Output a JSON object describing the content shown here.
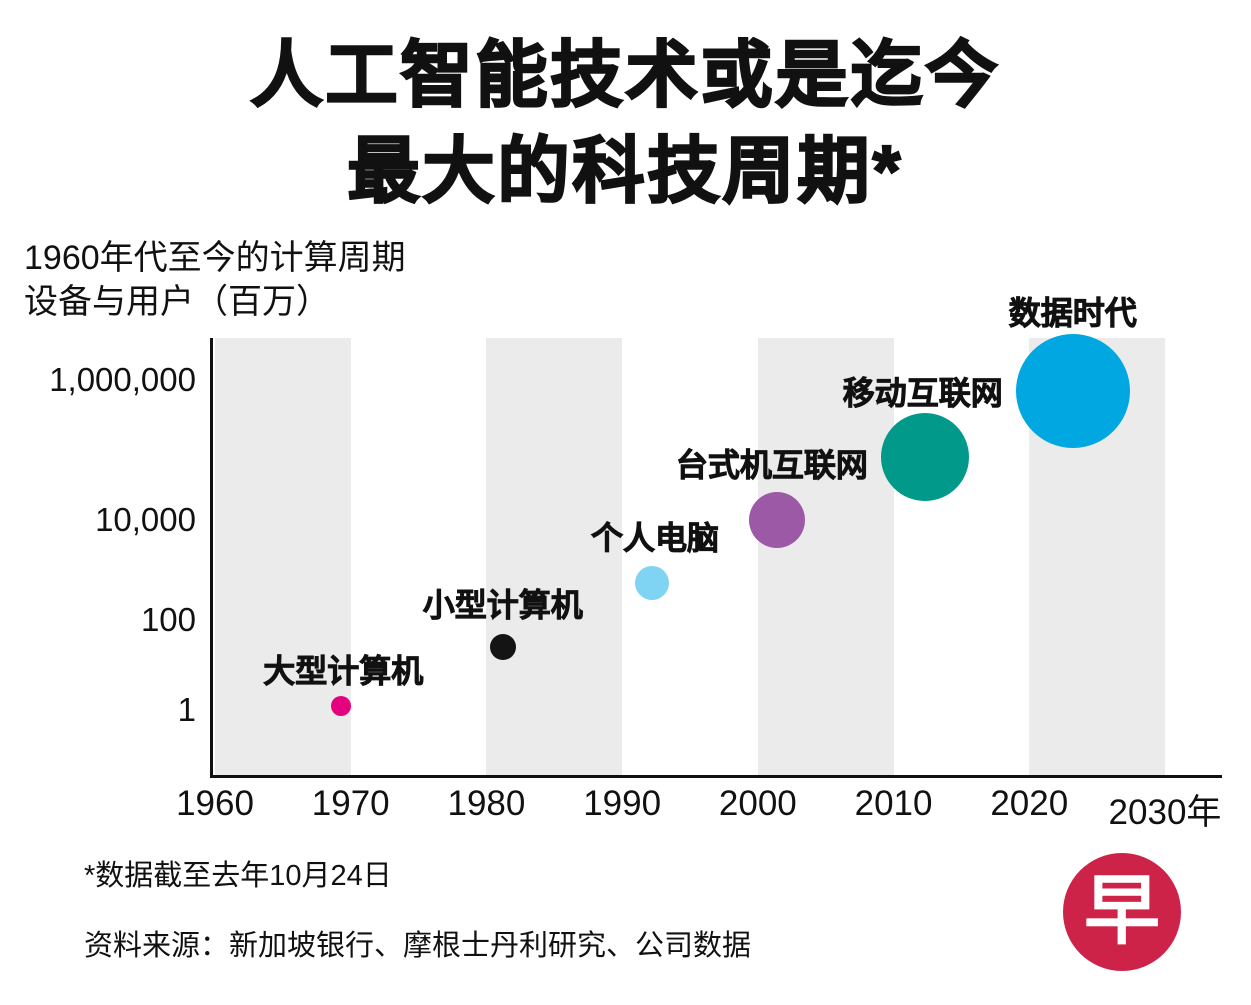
{
  "title": {
    "line1": "人工智能技术或是迄今",
    "line2": "最大的科技周期*"
  },
  "subtitle": {
    "line1": "1960年代至今的计算周期",
    "line2": "设备与用户（百万）"
  },
  "footnote": "*数据截至去年10月24日",
  "source": "资料来源：新加坡银行、摩根士丹利研究、公司数据",
  "logo": {
    "char": "早",
    "color": "#ce2349"
  },
  "chart_data": {
    "type": "scatter",
    "subtype": "bubble",
    "title": "1960年代至今的计算周期",
    "ylabel": "设备与用户（百万）",
    "xlabel": "年",
    "x_range": [
      1960,
      2030
    ],
    "y_scale": "log",
    "y_range": [
      1,
      1000000
    ],
    "grid": "alternating-decade-bands",
    "band_color": "#ebebeb",
    "bands": [
      [
        1960,
        1970
      ],
      [
        1980,
        1990
      ],
      [
        2000,
        2010
      ],
      [
        2020,
        2030
      ]
    ],
    "x_ticks": [
      {
        "label": "1960",
        "year": 1960
      },
      {
        "label": "1970",
        "year": 1970
      },
      {
        "label": "1980",
        "year": 1980
      },
      {
        "label": "1990",
        "year": 1990
      },
      {
        "label": "2000",
        "year": 2000
      },
      {
        "label": "2010",
        "year": 2010
      },
      {
        "label": "2020",
        "year": 2020
      },
      {
        "label": "2030年",
        "year": 2030
      }
    ],
    "y_ticks": [
      {
        "label": "1",
        "value": 1
      },
      {
        "label": "100",
        "value": 100
      },
      {
        "label": "10,000",
        "value": 10000
      },
      {
        "label": "1,000,000",
        "value": 1000000
      }
    ],
    "series": [
      {
        "id": "mainframe",
        "name": "大型计算机",
        "year": 1969.3,
        "value": 1.2,
        "color": "#e5007d",
        "radius": 10,
        "label_dx": 2,
        "label_dy": -37
      },
      {
        "id": "minicomputer",
        "name": "小型计算机",
        "year": 1981.2,
        "value": 25,
        "color": "#141414",
        "radius": 13,
        "label_dx": 0,
        "label_dy": -44
      },
      {
        "id": "personal-computer",
        "name": "个人电脑",
        "year": 1992.2,
        "value": 550,
        "color": "#7fd4f3",
        "radius": 17,
        "label_dx": 3,
        "label_dy": -47
      },
      {
        "id": "desktop-internet",
        "name": "台式机互联网",
        "year": 2001.4,
        "value": 10000,
        "color": "#9b59a6",
        "radius": 28,
        "label_dx": -5,
        "label_dy": -57
      },
      {
        "id": "mobile-internet",
        "name": "移动互联网",
        "year": 2012.3,
        "value": 80000,
        "color": "#00998a",
        "radius": 44,
        "label_dx": -2,
        "label_dy": -66
      },
      {
        "id": "data-era",
        "name": "数据时代",
        "year": 2023.2,
        "value": 700000,
        "color": "#00a7e1",
        "radius": 57,
        "label_dx": 0,
        "label_dy": -80
      }
    ]
  }
}
